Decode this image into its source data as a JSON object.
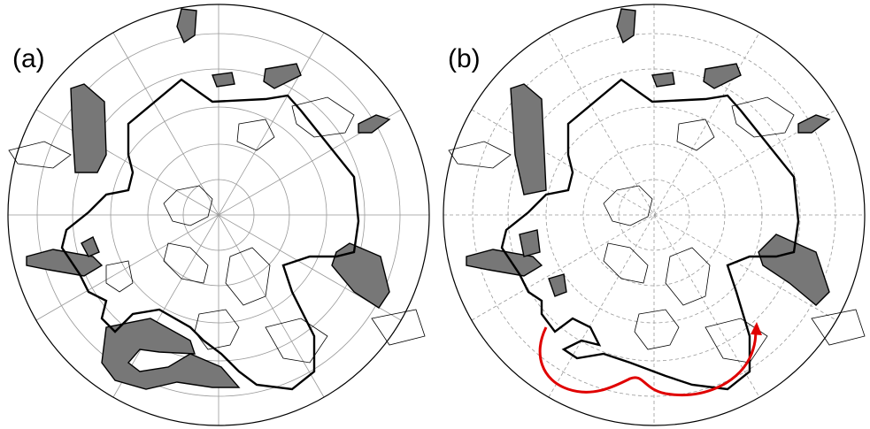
{
  "panels": [
    {
      "label": "(a)",
      "grid_style": "solid"
    },
    {
      "label": "(b)",
      "grid_style": "dashed",
      "annotation": "red-arrow"
    }
  ],
  "colors": {
    "frame": "#000000",
    "graticule": "#999999",
    "shaded_region": "#777777",
    "contour": "#000000",
    "coastline": "#000000",
    "arrow": "#e00000"
  }
}
